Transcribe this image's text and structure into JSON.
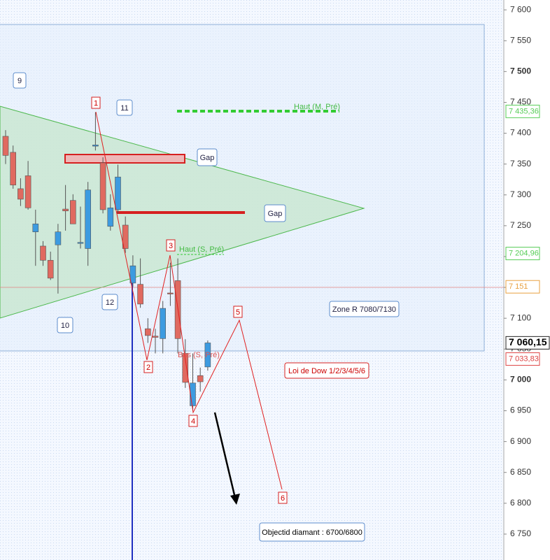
{
  "chart_data": {
    "type": "candlestick",
    "ylim": [
      6708,
      7616
    ],
    "yticks": [
      {
        "value": 7600,
        "label": "7 600"
      },
      {
        "value": 7550,
        "label": "7 550"
      },
      {
        "value": 7500,
        "label": "7 500"
      },
      {
        "value": 7450,
        "label": "7 450"
      },
      {
        "value": 7400,
        "label": "7 400"
      },
      {
        "value": 7350,
        "label": "7 350"
      },
      {
        "value": 7300,
        "label": "7 300"
      },
      {
        "value": 7250,
        "label": "7 250"
      },
      {
        "value": 7200,
        "label": "7 200"
      },
      {
        "value": 7150,
        "label": "7 150"
      },
      {
        "value": 7100,
        "label": "7 100"
      },
      {
        "value": 7050,
        "label": "7 050"
      },
      {
        "value": 7000,
        "label": "7 000"
      },
      {
        "value": 6950,
        "label": "6 950"
      },
      {
        "value": 6900,
        "label": "6 900"
      },
      {
        "value": 6850,
        "label": "6 850"
      },
      {
        "value": 6800,
        "label": "6 800"
      },
      {
        "value": 6750,
        "label": "6 750"
      }
    ],
    "up_color": "#3d9be0",
    "down_color": "#e06a60",
    "open": [
      7395,
      7369,
      7310,
      7331,
      7240,
      7217,
      7194,
      7219,
      7277,
      7291,
      7222,
      7213,
      7379,
      7352,
      7249,
      7276,
      7251,
      7157,
      7155,
      7083,
      7071,
      7067,
      7141,
      7161,
      7043,
      6958,
      7007,
      7021
    ],
    "high": [
      7405,
      7380,
      7327,
      7355,
      7276,
      7225,
      7208,
      7253,
      7316,
      7301,
      7281,
      7321,
      7434,
      7361,
      7301,
      7349,
      7265,
      7202,
      7197,
      7100,
      7083,
      7128,
      7190,
      7197,
      7066,
      7043,
      7020,
      7064
    ],
    "low": [
      7350,
      7310,
      7282,
      7276,
      7185,
      7185,
      7162,
      7140,
      7242,
      7253,
      7213,
      7185,
      7372,
      7270,
      7242,
      7270,
      7206,
      7151,
      7117,
      7060,
      7043,
      7043,
      7120,
      7043,
      6987,
      6950,
      6981,
      7015
    ],
    "close": [
      7364,
      7316,
      7293,
      7279,
      7253,
      7194,
      7165,
      7240,
      7274,
      7253,
      7223,
      7308,
      7381,
      7276,
      7279,
      7329,
      7213,
      7185,
      7123,
      7072,
      7069,
      7116,
      7140,
      7067,
      6996,
      6995,
      6997,
      7060
    ],
    "price_levels": [
      {
        "value": 7435.36,
        "label": "7 435,36",
        "color": "#55cc55"
      },
      {
        "value": 7204.96,
        "label": "7 204,96",
        "color": "#55cc55"
      },
      {
        "value": 7151,
        "label": "7 151",
        "color": "#e8a040"
      },
      {
        "value": 7060.15,
        "label": "7 060,15",
        "color": "#222222"
      },
      {
        "value": 7033.83,
        "label": "7 033,83",
        "color": "#dd4444"
      }
    ],
    "annotations": [
      "9",
      "10",
      "11",
      "12",
      "Gap",
      "Gap",
      "Haut (M, Pré)",
      "Haut (S, Pré)",
      "Bas (S, Pré)",
      "Zone R 7080/7130",
      "Loi de Dow 1/2/3/4/5/6",
      "Objectid diamant : 6700/6800"
    ],
    "wave_labels": [
      "1",
      "2",
      "3",
      "4",
      "5",
      "6"
    ]
  }
}
